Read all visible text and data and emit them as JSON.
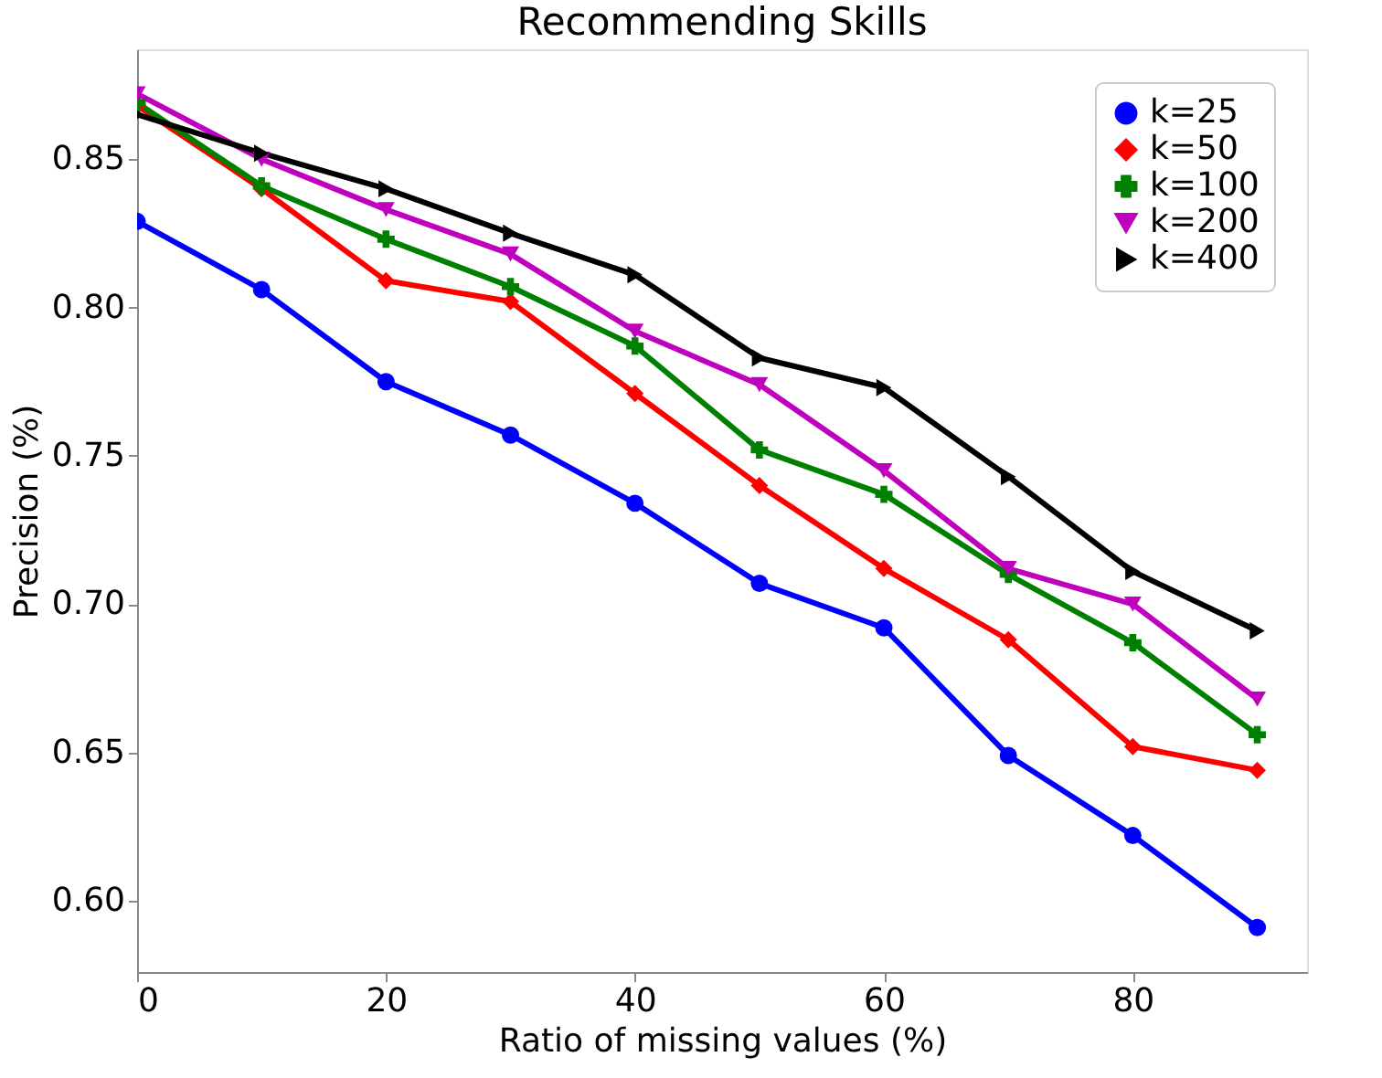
{
  "chart_data": {
    "type": "line",
    "title": "Recommending Skills",
    "xlabel": "Ratio of missing values (%)",
    "ylabel": "Precision (%)",
    "x": [
      0,
      10,
      20,
      30,
      40,
      50,
      60,
      70,
      80,
      90
    ],
    "xlim": [
      0,
      94
    ],
    "xticks": [
      0,
      20,
      40,
      60,
      80
    ],
    "ylim": [
      0.576,
      0.887
    ],
    "yticks": [
      {
        "value": 0.6,
        "label": "0.60"
      },
      0.65,
      {
        "value": 0.7,
        "label": "0.70"
      },
      0.75,
      {
        "value": 0.8,
        "label": "0.80"
      },
      0.85
    ],
    "grid": false,
    "legend": "top right",
    "line_style": "solid",
    "series": [
      {
        "name": "k=25",
        "color": "#0000ff",
        "marker": "circle",
        "values": [
          0.829,
          0.806,
          0.775,
          0.757,
          0.734,
          0.707,
          0.692,
          0.649,
          0.622,
          0.591
        ]
      },
      {
        "name": "k=50",
        "color": "#ff0000",
        "marker": "diamond",
        "values": [
          0.868,
          0.84,
          0.809,
          0.802,
          0.771,
          0.74,
          0.712,
          0.688,
          0.652,
          0.644
        ]
      },
      {
        "name": "k=100",
        "color": "#008000",
        "marker": "cross",
        "values": [
          0.869,
          0.841,
          0.823,
          0.807,
          0.787,
          0.752,
          0.737,
          0.71,
          0.687,
          0.656
        ]
      },
      {
        "name": "k=200",
        "color": "#bf00bf",
        "marker": "triangle-down",
        "values": [
          0.872,
          0.85,
          0.833,
          0.818,
          0.792,
          0.774,
          0.745,
          0.712,
          0.7,
          0.668
        ]
      },
      {
        "name": "k=400",
        "color": "#000000",
        "marker": "triangle-right",
        "values": [
          0.865,
          0.852,
          0.84,
          0.825,
          0.811,
          0.783,
          0.773,
          0.743,
          0.711,
          0.691
        ]
      }
    ]
  }
}
